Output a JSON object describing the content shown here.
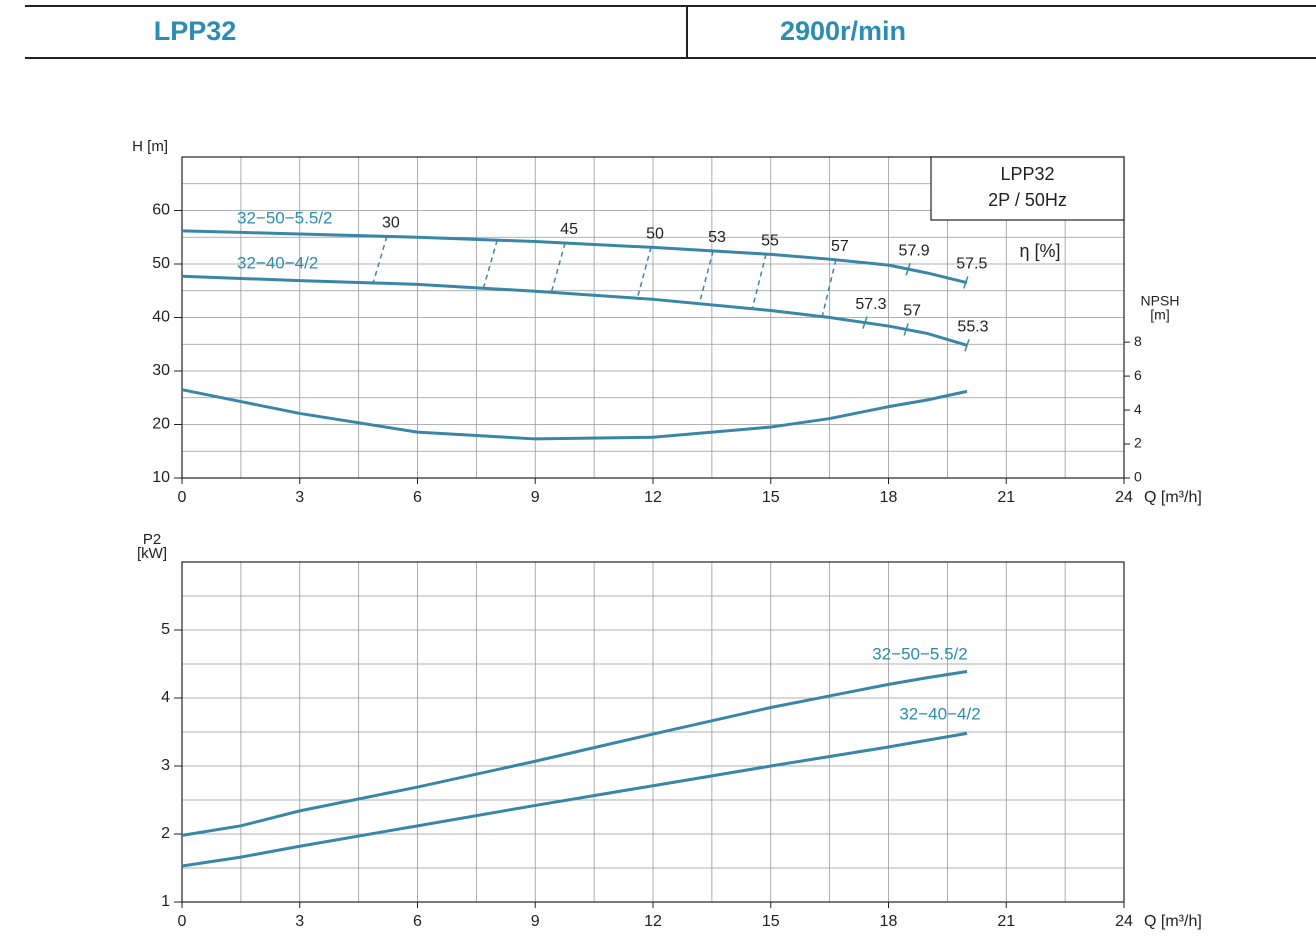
{
  "header": {
    "model": "LPP32",
    "speed": "2900r/min"
  },
  "chart_data": [
    {
      "type": "line",
      "box": [
        "LPP32",
        "2P / 50Hz"
      ],
      "ylabel": "H [m]",
      "y2label": [
        "NPSH",
        "[m]"
      ],
      "xlabel": "Q [m³/h]",
      "x": [
        0,
        1.5,
        3,
        6,
        9,
        12,
        15,
        16.5,
        18,
        19,
        20
      ],
      "series": [
        {
          "name": "32−50−5.5/2",
          "color": "#3a86a6",
          "values": [
            56.2,
            55.9,
            55.6,
            55.0,
            54.2,
            53.1,
            51.8,
            50.9,
            49.8,
            48.3,
            46.5
          ]
        },
        {
          "name": "32−40−4/2",
          "color": "#3a86a6",
          "values": [
            47.7,
            47.3,
            46.9,
            46.2,
            44.9,
            43.4,
            41.3,
            40.0,
            38.4,
            37.0,
            34.8
          ]
        },
        {
          "axis": "y2",
          "color": "#3a86a6",
          "values": [
            5.2,
            4.5,
            3.8,
            2.7,
            2.3,
            2.4,
            3.0,
            3.5,
            4.2,
            4.6,
            5.1
          ]
        }
      ],
      "xlim": [
        0,
        24
      ],
      "ylim": [
        10,
        70
      ],
      "y2lim": [
        0,
        18.9
      ],
      "xticks": [
        0,
        3,
        6,
        9,
        12,
        15,
        18,
        21,
        24
      ],
      "yticks": [
        10,
        20,
        30,
        40,
        50,
        60
      ],
      "y2ticks": [
        0,
        2,
        4,
        6,
        8
      ],
      "xgrid": [
        1.5,
        3,
        4.5,
        6,
        7.5,
        9,
        10.5,
        12,
        13.5,
        15,
        16.5,
        18,
        19.5,
        21,
        22.5
      ],
      "ygrid": [
        15,
        20,
        25,
        30,
        35,
        40,
        45,
        50,
        55,
        60,
        65
      ],
      "efficiency": {
        "label": "η [%]",
        "lines": {
          "q": [
            5.22,
            8.03,
            9.76,
            11.95,
            13.53,
            14.88,
            16.66
          ],
          "values": [
            30,
            null,
            45,
            50,
            53,
            55,
            57
          ]
        },
        "upper_marks": {
          "q": [
            18.5,
            19.97
          ],
          "values": [
            57.9,
            57.5
          ]
        },
        "lower_marks": {
          "q": [
            17.4,
            18.45,
            20
          ],
          "values": [
            57.3,
            57,
            55.3
          ]
        }
      }
    },
    {
      "type": "line",
      "ylabel": [
        "P2",
        "[kW]"
      ],
      "xlabel": "Q [m³/h]",
      "x": [
        0,
        1.5,
        3,
        6,
        9,
        12,
        15,
        16.5,
        18,
        19,
        20
      ],
      "series": [
        {
          "name": "32−50−5.5/2",
          "color": "#3a86a6",
          "values": [
            1.98,
            2.12,
            2.34,
            2.69,
            3.07,
            3.47,
            3.86,
            4.03,
            4.2,
            4.3,
            4.39
          ]
        },
        {
          "name": "32−40−4/2",
          "color": "#3a86a6",
          "values": [
            1.53,
            1.66,
            1.82,
            2.12,
            2.42,
            2.71,
            3.0,
            3.14,
            3.28,
            3.38,
            3.48
          ]
        }
      ],
      "xlim": [
        0,
        24
      ],
      "ylim": [
        1,
        6
      ],
      "xticks": [
        0,
        3,
        6,
        9,
        12,
        15,
        18,
        21,
        24
      ],
      "yticks": [
        1,
        2,
        3,
        4,
        5
      ],
      "xgrid": [
        1.5,
        3,
        4.5,
        6,
        7.5,
        9,
        10.5,
        12,
        13.5,
        15,
        16.5,
        18,
        19.5,
        21,
        22.5
      ],
      "ygrid": [
        1.5,
        2,
        2.5,
        3,
        3.5,
        4,
        4.5,
        5,
        5.5
      ]
    }
  ]
}
